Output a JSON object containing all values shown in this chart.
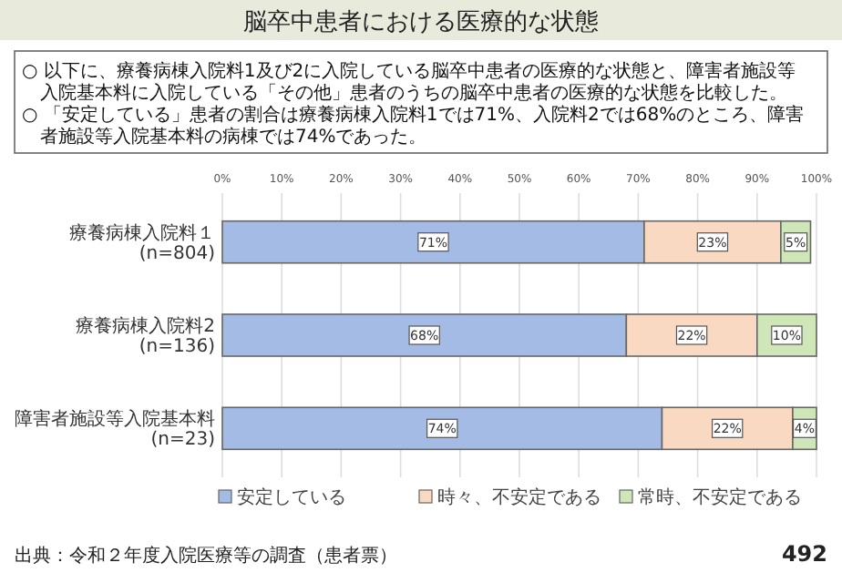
{
  "chart_data": {
    "type": "bar",
    "orientation": "horizontal",
    "stacked": true,
    "title": "脳卒中患者における医療的な状態",
    "categories": [
      "療養病棟入院料１(n=804)",
      "療養病棟入院料2(n=136)",
      "障害者施設等入院基本料(n=23)"
    ],
    "series": [
      {
        "name": "安定している",
        "color": "#a4bbe6",
        "values": [
          71,
          68,
          74
        ],
        "value_labels": [
          "71%",
          "68%",
          "74%"
        ]
      },
      {
        "name": "時々、不安定である",
        "color": "#f9d9c2",
        "values": [
          23,
          22,
          22
        ],
        "value_labels": [
          "23%",
          "22%",
          "22%"
        ]
      },
      {
        "name": "常時、不安定である",
        "color": "#cfe6b8",
        "values": [
          5,
          10,
          4
        ],
        "value_labels": [
          "5%",
          "10%",
          "4%"
        ]
      }
    ],
    "xlim": [
      0,
      100
    ],
    "xticks": [
      {
        "value": 0,
        "label": "0%"
      },
      {
        "value": 10,
        "label": "10%"
      },
      {
        "value": 20,
        "label": "20%"
      },
      {
        "value": 30,
        "label": "30%"
      },
      {
        "value": 40,
        "label": "40%"
      },
      {
        "value": 50,
        "label": "50%"
      },
      {
        "value": 60,
        "label": "60%"
      },
      {
        "value": 70,
        "label": "70%"
      },
      {
        "value": 80,
        "label": "80%"
      },
      {
        "value": 90,
        "label": "90%"
      },
      {
        "value": 100,
        "label": "100%"
      }
    ],
    "grid": "x",
    "legend": "bottom",
    "annotations": [
      "○ 以下に、療養病棟入院料1及び2に入院している脳卒中患者の医療的な状態と、障害者施設等入院基本料に入院している「その他」患者のうちの脳卒中患者の医療的な状態を比較した。",
      "○ 「安定している」患者の割合は療養病棟入院料1では71%、入院料2では68%のところ、障害者施設等入院基本料の病棟では74%であった。",
      "出典：令和２年度入院医療等の調査（患者票）",
      "492"
    ]
  }
}
